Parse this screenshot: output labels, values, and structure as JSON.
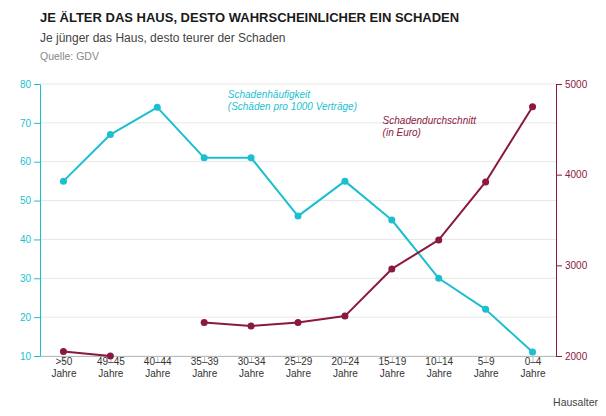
{
  "chart_data": {
    "type": "line",
    "title": "JE ÄLTER DAS HAUS, DESTO WAHRSCHEINLICHER EIN SCHADEN",
    "subtitle": "Je jünger das Haus, desto teurer der Schaden",
    "source": "Quelle: GDV",
    "xlabel": "Hausalter",
    "annotations": [
      "Schadenhäufigkeit\n(Schäden pro 1000 Verträge)",
      "Schadendurchschnitt\n(in Euro)"
    ],
    "categories": [
      ">50\nJahre",
      "49–45\nJahre",
      "40–44\nJahre",
      "35–39\nJahre",
      "30–34\nJahre",
      "25–29\nJahre",
      "20–24\nJahre",
      "15–19\nJahre",
      "10–14\nJahre",
      "5–9\nJahre",
      "0–4\nJahre"
    ],
    "series": [
      {
        "color": "#1BBFCF",
        "marker": "circle",
        "values": [
          55,
          67,
          74,
          61,
          61,
          46,
          55,
          45,
          30,
          22,
          11
        ]
      },
      {
        "color": "#8B1840",
        "marker": "circle",
        "axis": "y2",
        "values": [
          2050,
          2000,
          null,
          2370,
          2330,
          2370,
          2440,
          2960,
          3280,
          3920,
          4750
        ]
      }
    ],
    "ylim": [
      10,
      80
    ],
    "yticks": [
      10,
      20,
      30,
      40,
      50,
      60,
      70,
      80
    ],
    "y2lim": [
      2000,
      5000
    ],
    "y2ticks": [
      2000,
      3000,
      4000,
      5000
    ],
    "grid": true
  }
}
